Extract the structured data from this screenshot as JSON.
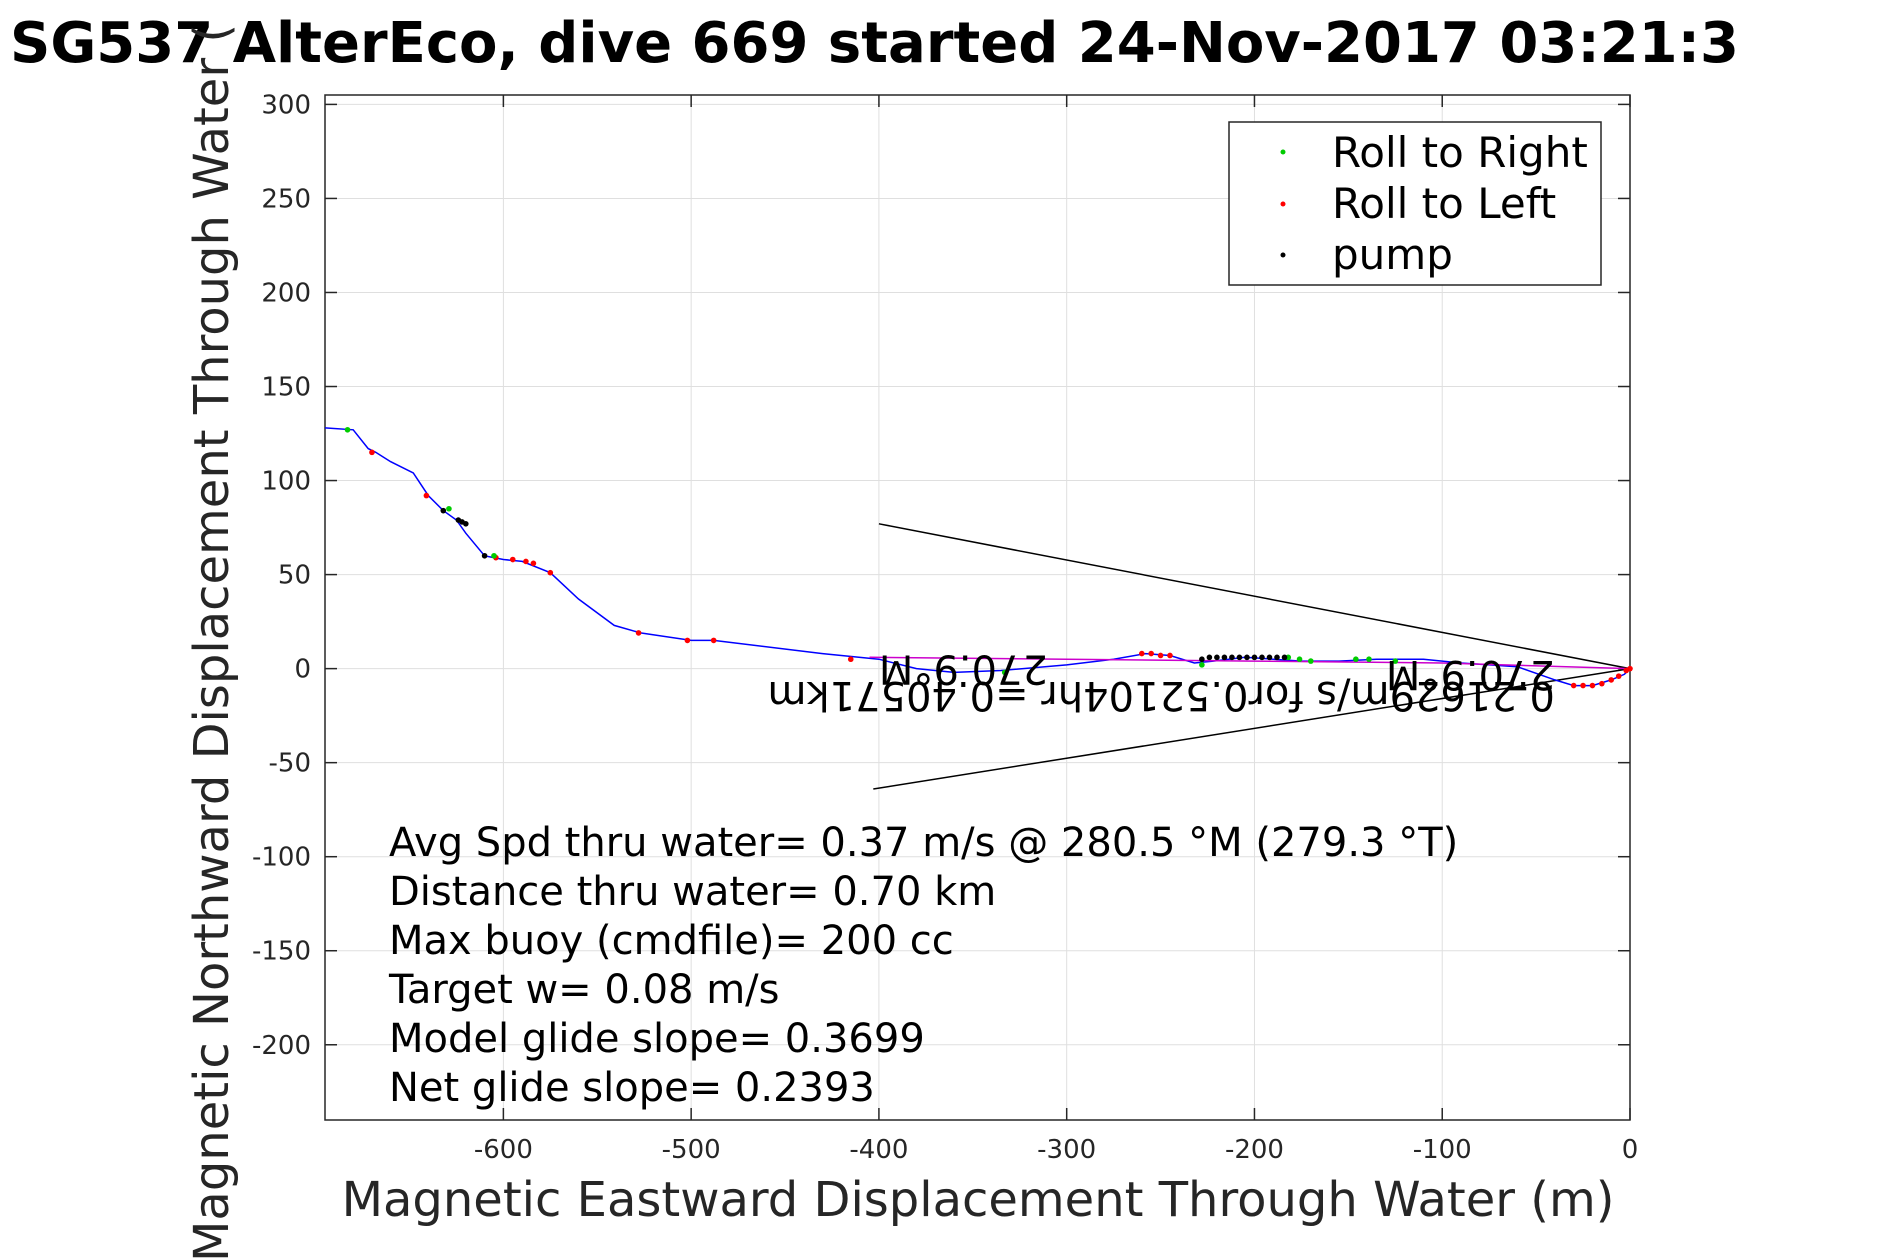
{
  "chart_data": {
    "type": "line",
    "title": "SG537 AlterEco, dive 669 started 24-Nov-2017 03:21:3",
    "xlabel": "Magnetic Eastward Displacement Through Water (m)",
    "ylabel": "Magnetic Northward Displacement Through Water (",
    "xlim": [
      -695,
      0
    ],
    "ylim": [
      -240,
      305
    ],
    "x_ticks": [
      -600,
      -500,
      -400,
      -300,
      -200,
      -100,
      0
    ],
    "y_ticks": [
      300,
      250,
      200,
      150,
      100,
      50,
      0,
      -50,
      -100,
      -150,
      -200
    ],
    "x_tick_labels": [
      "-600",
      "-500",
      "-400",
      "-300",
      "-200",
      "-100",
      "0"
    ],
    "y_tick_labels": [
      "300",
      "250",
      "200",
      "150",
      "100",
      "50",
      "0",
      "-50",
      "-100",
      "-150",
      "-200"
    ],
    "grid": true,
    "legend_position": "top-right",
    "legend": [
      {
        "label": "Roll to Right",
        "color": "#00cc00"
      },
      {
        "label": "Roll to Left",
        "color": "#ff0000"
      },
      {
        "label": "pump",
        "color": "#000000"
      }
    ],
    "track_color": "#0000ff",
    "current_color": "#cc00cc",
    "series": [
      {
        "name": "track",
        "color": "#0000ff",
        "points": [
          [
            -695,
            128
          ],
          [
            -680,
            127
          ],
          [
            -672,
            117
          ],
          [
            -668,
            115
          ],
          [
            -660,
            110
          ],
          [
            -648,
            104
          ],
          [
            -640,
            92
          ],
          [
            -632,
            84
          ],
          [
            -625,
            79
          ],
          [
            -620,
            72
          ],
          [
            -610,
            60
          ],
          [
            -600,
            58
          ],
          [
            -590,
            57
          ],
          [
            -575,
            51
          ],
          [
            -560,
            37
          ],
          [
            -541,
            23
          ],
          [
            -527,
            19
          ],
          [
            -500,
            15
          ],
          [
            -488,
            15
          ],
          [
            -430,
            8
          ],
          [
            -400,
            5
          ],
          [
            -380,
            0
          ],
          [
            -360,
            -2
          ],
          [
            -335,
            -1
          ],
          [
            -300,
            2
          ],
          [
            -275,
            5
          ],
          [
            -258,
            8
          ],
          [
            -245,
            7
          ],
          [
            -232,
            3
          ],
          [
            -222,
            4
          ],
          [
            -205,
            6
          ],
          [
            -190,
            5
          ],
          [
            -175,
            4
          ],
          [
            -155,
            4
          ],
          [
            -135,
            5
          ],
          [
            -110,
            5
          ],
          [
            -90,
            3
          ],
          [
            -60,
            1
          ],
          [
            -40,
            -6
          ],
          [
            -30,
            -9
          ],
          [
            -20,
            -9
          ],
          [
            -10,
            -6
          ],
          [
            -3,
            -3
          ],
          [
            0,
            0
          ]
        ]
      },
      {
        "name": "current",
        "color": "#cc00cc",
        "points": [
          [
            -405,
            6
          ],
          [
            -300,
            5
          ],
          [
            -200,
            4
          ],
          [
            -100,
            3
          ],
          [
            0,
            0
          ]
        ]
      }
    ],
    "roll_right_points": [
      [
        -683,
        127
      ],
      [
        -629,
        85
      ],
      [
        -605,
        60
      ],
      [
        -333,
        -2
      ],
      [
        -228,
        2
      ],
      [
        -182,
        6
      ],
      [
        -176,
        5
      ],
      [
        -170,
        4
      ],
      [
        -146,
        5
      ],
      [
        -139,
        5
      ],
      [
        -125,
        4
      ]
    ],
    "roll_left_points": [
      [
        -670,
        115
      ],
      [
        -641,
        92
      ],
      [
        -604,
        59
      ],
      [
        -595,
        58
      ],
      [
        -588,
        57
      ],
      [
        -584,
        56
      ],
      [
        -575,
        51
      ],
      [
        -528,
        19
      ],
      [
        -502,
        15
      ],
      [
        -488,
        15
      ],
      [
        -415,
        5
      ],
      [
        -260,
        8
      ],
      [
        -255,
        8
      ],
      [
        -250,
        7
      ],
      [
        -245,
        7
      ],
      [
        -30,
        -9
      ],
      [
        -25,
        -9
      ],
      [
        -20,
        -9
      ],
      [
        -15,
        -8
      ],
      [
        -10,
        -6
      ],
      [
        -6,
        -4
      ],
      [
        -2,
        -1
      ],
      [
        0,
        0
      ]
    ],
    "pump_points": [
      [
        -632,
        84
      ],
      [
        -624,
        79
      ],
      [
        -622,
        78
      ],
      [
        -620,
        77
      ],
      [
        -610,
        60
      ],
      [
        -228,
        5
      ],
      [
        -224,
        6
      ],
      [
        -220,
        6
      ],
      [
        -216,
        6
      ],
      [
        -212,
        6
      ],
      [
        -208,
        6
      ],
      [
        -204,
        6
      ],
      [
        -200,
        6
      ],
      [
        -196,
        6
      ],
      [
        -192,
        6
      ],
      [
        -188,
        6
      ],
      [
        -184,
        6
      ]
    ],
    "cone_lines": [
      {
        "from": [
          -400,
          77
        ],
        "to": [
          0,
          0
        ]
      },
      {
        "from": [
          -403,
          -64
        ],
        "to": [
          0,
          0
        ]
      }
    ],
    "cone_labels": [
      {
        "text": "270.9°M",
        "x": -310,
        "y": 7
      },
      {
        "text": "270.9°M",
        "x": -40,
        "y": 4
      },
      {
        "text": "0.21629m/s for0.52104hr =0.40571km",
        "x": -40,
        "y": -7
      }
    ],
    "stats": [
      "Avg Spd thru water=  0.37 m/s @ 280.5 °M (279.3 °T)",
      "Distance thru water=  0.70 km",
      "Max buoy (cmdfile)= 200 cc",
      "Target w= 0.08 m/s",
      "Model glide slope= 0.3699",
      "Net glide slope= 0.2393"
    ]
  }
}
